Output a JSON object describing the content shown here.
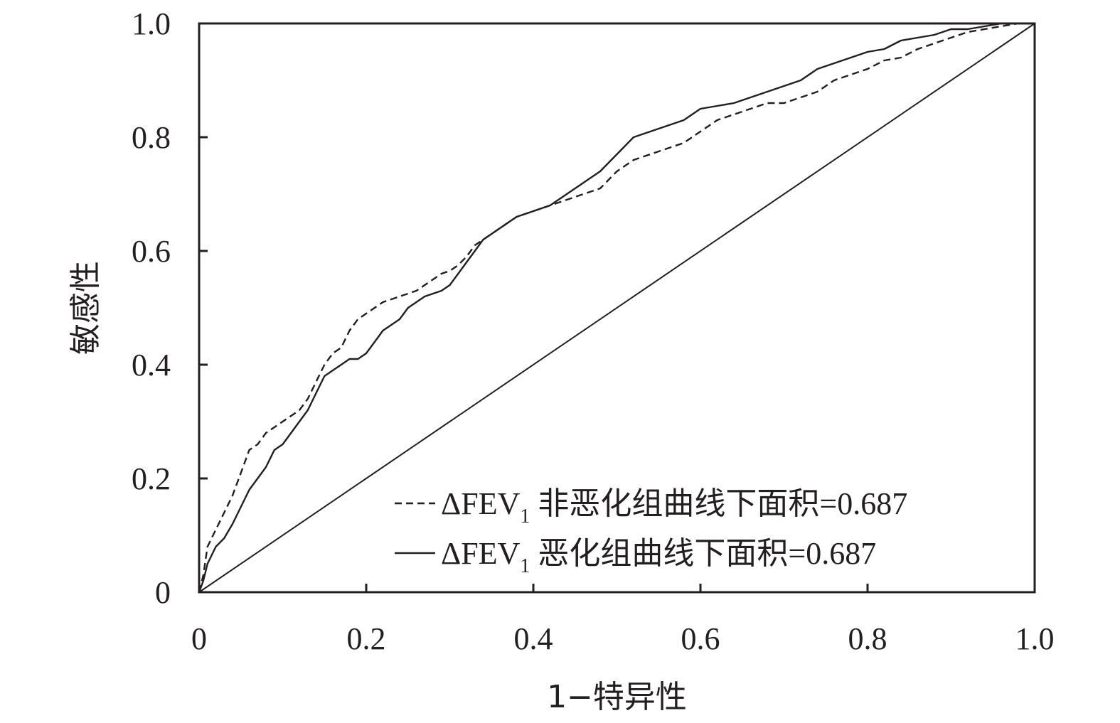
{
  "chart_data": {
    "type": "line",
    "title": "",
    "xlabel": "1−特异性",
    "ylabel": "敏感性",
    "xlim": [
      0,
      1
    ],
    "ylim": [
      0,
      1
    ],
    "grid": false,
    "legend_position": "bottom-right",
    "x_ticks": [
      {
        "value": 0,
        "label": "0"
      },
      {
        "value": 0.2,
        "label": "0.2"
      },
      {
        "value": 0.4,
        "label": "0.4"
      },
      {
        "value": 0.6,
        "label": "0.6"
      },
      {
        "value": 0.8,
        "label": "0.8"
      },
      {
        "value": 1.0,
        "label": "1.0"
      }
    ],
    "y_ticks": [
      {
        "value": 0,
        "label": "0"
      },
      {
        "value": 0.2,
        "label": "0.2"
      },
      {
        "value": 0.4,
        "label": "0.4"
      },
      {
        "value": 0.6,
        "label": "0.6"
      },
      {
        "value": 0.8,
        "label": "0.8"
      },
      {
        "value": 1.0,
        "label": "1.0"
      }
    ],
    "series": [
      {
        "name": "ΔFEV1 非恶化组曲线下面积=0.687",
        "label_pre": "ΔFEV",
        "label_sub": "1",
        "label_post": " 非恶化组曲线下面积=0.687",
        "style": "dashed",
        "color": "#231f20",
        "x": [
          0,
          0.005,
          0.01,
          0.02,
          0.03,
          0.04,
          0.05,
          0.06,
          0.07,
          0.08,
          0.09,
          0.1,
          0.11,
          0.12,
          0.13,
          0.14,
          0.15,
          0.16,
          0.17,
          0.18,
          0.19,
          0.2,
          0.21,
          0.22,
          0.23,
          0.24,
          0.25,
          0.26,
          0.27,
          0.28,
          0.29,
          0.3,
          0.31,
          0.32,
          0.33,
          0.34,
          0.35,
          0.36,
          0.38,
          0.4,
          0.42,
          0.44,
          0.46,
          0.48,
          0.5,
          0.52,
          0.54,
          0.56,
          0.58,
          0.6,
          0.62,
          0.64,
          0.66,
          0.68,
          0.7,
          0.72,
          0.74,
          0.76,
          0.78,
          0.8,
          0.82,
          0.84,
          0.86,
          0.88,
          0.9,
          0.92,
          0.94,
          0.96,
          0.98
        ],
        "y": [
          0,
          0.03,
          0.08,
          0.11,
          0.14,
          0.17,
          0.21,
          0.25,
          0.26,
          0.28,
          0.29,
          0.3,
          0.31,
          0.32,
          0.34,
          0.37,
          0.4,
          0.42,
          0.43,
          0.46,
          0.48,
          0.49,
          0.5,
          0.51,
          0.515,
          0.52,
          0.525,
          0.53,
          0.54,
          0.55,
          0.56,
          0.565,
          0.575,
          0.59,
          0.61,
          0.62,
          0.63,
          0.64,
          0.66,
          0.67,
          0.68,
          0.69,
          0.7,
          0.71,
          0.74,
          0.76,
          0.77,
          0.78,
          0.79,
          0.81,
          0.83,
          0.84,
          0.85,
          0.86,
          0.86,
          0.87,
          0.88,
          0.9,
          0.91,
          0.92,
          0.935,
          0.94,
          0.955,
          0.965,
          0.975,
          0.985,
          0.99,
          0.995,
          1.0
        ]
      },
      {
        "name": "ΔFEV1 恶化组曲线下面积=0.687",
        "label_pre": "ΔFEV",
        "label_sub": "1",
        "label_post": " 恶化组曲线下面积=0.687",
        "style": "solid",
        "color": "#231f20",
        "x": [
          0,
          0.005,
          0.01,
          0.02,
          0.03,
          0.04,
          0.05,
          0.06,
          0.07,
          0.08,
          0.09,
          0.1,
          0.11,
          0.12,
          0.13,
          0.14,
          0.15,
          0.16,
          0.17,
          0.18,
          0.19,
          0.2,
          0.21,
          0.22,
          0.23,
          0.24,
          0.25,
          0.26,
          0.27,
          0.28,
          0.29,
          0.3,
          0.31,
          0.32,
          0.33,
          0.34,
          0.35,
          0.36,
          0.38,
          0.4,
          0.42,
          0.44,
          0.46,
          0.48,
          0.5,
          0.52,
          0.54,
          0.56,
          0.58,
          0.6,
          0.62,
          0.64,
          0.66,
          0.68,
          0.7,
          0.72,
          0.74,
          0.76,
          0.78,
          0.8,
          0.82,
          0.84,
          0.86,
          0.88,
          0.9,
          0.92,
          0.94,
          0.96,
          0.98
        ],
        "y": [
          0,
          0.02,
          0.05,
          0.08,
          0.095,
          0.12,
          0.15,
          0.18,
          0.2,
          0.22,
          0.25,
          0.26,
          0.28,
          0.3,
          0.32,
          0.35,
          0.38,
          0.39,
          0.4,
          0.41,
          0.41,
          0.42,
          0.44,
          0.46,
          0.47,
          0.48,
          0.5,
          0.51,
          0.52,
          0.525,
          0.53,
          0.54,
          0.56,
          0.58,
          0.6,
          0.62,
          0.63,
          0.64,
          0.66,
          0.67,
          0.68,
          0.7,
          0.72,
          0.74,
          0.77,
          0.8,
          0.81,
          0.82,
          0.83,
          0.85,
          0.855,
          0.86,
          0.87,
          0.88,
          0.89,
          0.9,
          0.92,
          0.93,
          0.94,
          0.95,
          0.955,
          0.97,
          0.975,
          0.98,
          0.99,
          0.99,
          0.995,
          1.0,
          1.0
        ]
      },
      {
        "name": "",
        "style": "reference",
        "color": "#231f20",
        "x": [
          0,
          1
        ],
        "y": [
          0,
          1
        ]
      }
    ]
  }
}
